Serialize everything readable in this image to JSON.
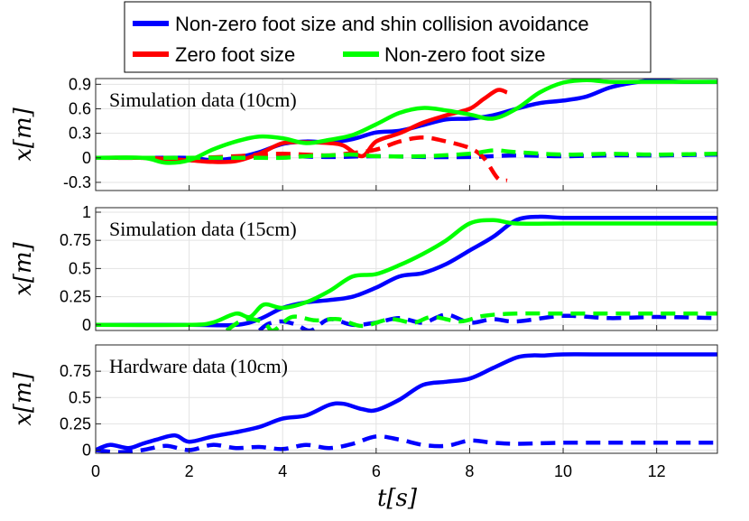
{
  "legend": {
    "entries": [
      {
        "label": "Non-zero foot size and shin collision avoidance",
        "color": "#0000ff"
      },
      {
        "label": "Zero foot size",
        "color": "#ff0000"
      },
      {
        "label": "Non-zero foot size",
        "color": "#00ff00"
      }
    ]
  },
  "chart_data": [
    {
      "type": "line",
      "annotation": "Simulation data (10cm)",
      "ylabel": "x[m]",
      "xlabel": "",
      "xlim": [
        0,
        13.3
      ],
      "ylim": [
        -0.4,
        0.97
      ],
      "yticks": [
        -0.3,
        0,
        0.3,
        0.6,
        0.9
      ],
      "ytick_labels": [
        "-0.3",
        "0",
        "0.3",
        "0.6",
        "0.9"
      ],
      "grid": true,
      "series": [
        {
          "name": "Non-zero foot size and shin collision avoidance",
          "color": "#0000ff",
          "dashed": false,
          "x": [
            0,
            1,
            2,
            2.5,
            3,
            3.5,
            4,
            4.5,
            5,
            5.5,
            6,
            6.5,
            7,
            7.5,
            8,
            8.5,
            9,
            9.5,
            10,
            10.5,
            11,
            11.5,
            12,
            12.5,
            13.3
          ],
          "y": [
            0,
            0,
            0,
            -0.03,
            0,
            0.07,
            0.17,
            0.2,
            0.19,
            0.23,
            0.31,
            0.33,
            0.4,
            0.47,
            0.48,
            0.52,
            0.6,
            0.67,
            0.7,
            0.75,
            0.86,
            0.92,
            0.95,
            0.93,
            0.93
          ]
        },
        {
          "name": "Non-zero foot size and shin collision avoidance",
          "color": "#0000ff",
          "dashed": true,
          "x": [
            0,
            2,
            3,
            4,
            5,
            6,
            7,
            8,
            9,
            10,
            11,
            12,
            13.3
          ],
          "y": [
            0,
            0,
            0,
            0.02,
            0.01,
            0.02,
            0.01,
            0.01,
            0.03,
            0.02,
            0.03,
            0.03,
            0.04
          ]
        },
        {
          "name": "Zero foot size",
          "color": "#ff0000",
          "dashed": false,
          "x": [
            0,
            1,
            2,
            2.5,
            3,
            3.5,
            4,
            4.5,
            5,
            5.3,
            5.7,
            6,
            6.5,
            7,
            7.5,
            8,
            8.3,
            8.6,
            8.8
          ],
          "y": [
            0,
            0,
            -0.03,
            -0.05,
            -0.04,
            0.05,
            0.18,
            0.19,
            0.18,
            0.15,
            0.02,
            0.2,
            0.3,
            0.43,
            0.52,
            0.6,
            0.72,
            0.83,
            0.8
          ]
        },
        {
          "name": "Zero foot size",
          "color": "#ff0000",
          "dashed": true,
          "x": [
            0,
            2,
            3,
            3.5,
            4,
            4.5,
            5,
            5.5,
            6,
            6.5,
            7,
            7.5,
            8,
            8.3,
            8.6,
            8.8
          ],
          "y": [
            0,
            0,
            0.02,
            0.04,
            0.05,
            0.04,
            0.03,
            0.06,
            0.1,
            0.2,
            0.25,
            0.2,
            0.12,
            0.0,
            -0.25,
            -0.28
          ]
        },
        {
          "name": "Non-zero foot size",
          "color": "#00ff00",
          "dashed": false,
          "x": [
            0,
            1,
            1.5,
            2,
            2.5,
            3,
            3.5,
            4,
            4.5,
            5,
            5.5,
            6,
            6.5,
            7,
            7.5,
            8,
            8.5,
            9,
            9.5,
            10,
            10.5,
            11,
            12,
            13.3
          ],
          "y": [
            0,
            0,
            -0.06,
            -0.03,
            0.1,
            0.2,
            0.26,
            0.24,
            0.18,
            0.22,
            0.28,
            0.41,
            0.55,
            0.61,
            0.58,
            0.53,
            0.48,
            0.6,
            0.8,
            0.92,
            0.95,
            0.93,
            0.93,
            0.93
          ]
        },
        {
          "name": "Non-zero foot size",
          "color": "#00ff00",
          "dashed": true,
          "x": [
            0,
            2,
            3,
            3.5,
            4,
            4.5,
            5,
            5.5,
            6,
            7,
            8,
            8.5,
            9,
            10,
            11,
            12,
            13.3
          ],
          "y": [
            0,
            0,
            0,
            0,
            0,
            0.02,
            0.03,
            0.04,
            0.02,
            0.02,
            0.05,
            0.09,
            0.07,
            0.04,
            0.05,
            0.04,
            0.05
          ]
        }
      ]
    },
    {
      "type": "line",
      "annotation": "Simulation data (15cm)",
      "ylabel": "x[m]",
      "xlabel": "",
      "xlim": [
        0,
        13.3
      ],
      "ylim": [
        -0.05,
        1.04
      ],
      "yticks": [
        0,
        0.25,
        0.5,
        0.75,
        1
      ],
      "ytick_labels": [
        "0",
        "0.25",
        "0.5",
        "0.75",
        "1"
      ],
      "grid": true,
      "series": [
        {
          "name": "Non-zero foot size and shin collision avoidance",
          "color": "#0000ff",
          "dashed": false,
          "x": [
            0,
            2,
            3,
            3.5,
            4,
            4.5,
            5,
            5.5,
            6,
            6.5,
            7,
            7.5,
            8,
            8.5,
            9,
            9.5,
            10,
            11,
            12,
            13.3
          ],
          "y": [
            0,
            0,
            0,
            0.05,
            0.15,
            0.2,
            0.22,
            0.25,
            0.33,
            0.43,
            0.46,
            0.54,
            0.66,
            0.78,
            0.93,
            0.96,
            0.95,
            0.95,
            0.95,
            0.95
          ]
        },
        {
          "name": "Non-zero foot size and shin collision avoidance",
          "color": "#0000ff",
          "dashed": true,
          "x": [
            3.5,
            3.7,
            4,
            4.3,
            4.6,
            5,
            5.5,
            6,
            6.5,
            7,
            7.5,
            8,
            8.5,
            9,
            10,
            11,
            12,
            13.3
          ],
          "y": [
            -0.05,
            0.01,
            0.03,
            0,
            -0.05,
            0.05,
            0.0,
            0.02,
            0.06,
            0.02,
            0.09,
            0.02,
            0.05,
            0.03,
            0.08,
            0.06,
            0.07,
            0.06
          ]
        },
        {
          "name": "Non-zero foot size",
          "color": "#00ff00",
          "dashed": false,
          "x": [
            0,
            2,
            2.5,
            3,
            3.3,
            3.6,
            4,
            4.5,
            5,
            5.5,
            6,
            6.5,
            7,
            7.5,
            8,
            8.5,
            9,
            10,
            11,
            12,
            13.3
          ],
          "y": [
            0,
            0,
            0.02,
            0.1,
            0.07,
            0.18,
            0.15,
            0.2,
            0.3,
            0.43,
            0.45,
            0.53,
            0.63,
            0.75,
            0.9,
            0.93,
            0.9,
            0.9,
            0.9,
            0.9,
            0.9
          ]
        },
        {
          "name": "Non-zero foot size",
          "color": "#00ff00",
          "dashed": true,
          "x": [
            2.8,
            3.2,
            3.6,
            3.8,
            4.2,
            4.7,
            5.2,
            5.7,
            6.3,
            6.8,
            7.2,
            7.8,
            8.3,
            9,
            10,
            11,
            12,
            13.3
          ],
          "y": [
            -0.05,
            0.05,
            0.02,
            -0.05,
            0.07,
            0.04,
            0.05,
            -0.01,
            0.05,
            0.02,
            0.07,
            0.03,
            0.08,
            0.1,
            0.1,
            0.1,
            0.1,
            0.1
          ]
        }
      ]
    },
    {
      "type": "line",
      "annotation": "Hardware data (10cm)",
      "ylabel": "x[m]",
      "xlabel": "t[s]",
      "xlim": [
        0,
        13.3
      ],
      "ylim": [
        -0.03,
        1.0
      ],
      "yticks": [
        0,
        0.25,
        0.5,
        0.75
      ],
      "ytick_labels": [
        "0",
        "0.25",
        "0.5",
        "0.75"
      ],
      "xticks": [
        0,
        2,
        4,
        6,
        8,
        10,
        12
      ],
      "xtick_labels": [
        "0",
        "2",
        "4",
        "6",
        "8",
        "10",
        "12"
      ],
      "grid": true,
      "series": [
        {
          "name": "Non-zero foot size and shin collision avoidance",
          "color": "#0000ff",
          "dashed": false,
          "x": [
            0,
            0.3,
            0.7,
            1,
            1.3,
            1.7,
            2,
            2.5,
            3,
            3.5,
            4,
            4.5,
            5,
            5.3,
            5.7,
            6,
            6.5,
            7,
            7.5,
            8,
            8.5,
            9,
            9.3,
            9.6,
            10,
            11,
            12,
            13.3
          ],
          "y": [
            0,
            0.05,
            0.02,
            0.06,
            0.1,
            0.14,
            0.08,
            0.13,
            0.17,
            0.22,
            0.3,
            0.33,
            0.43,
            0.44,
            0.39,
            0.38,
            0.48,
            0.62,
            0.65,
            0.68,
            0.78,
            0.88,
            0.9,
            0.9,
            0.91,
            0.91,
            0.91,
            0.91
          ]
        },
        {
          "name": "Non-zero foot size and shin collision avoidance",
          "color": "#0000ff",
          "dashed": true,
          "x": [
            0,
            0.5,
            1,
            1.5,
            2,
            2.5,
            3,
            3.5,
            4,
            4.5,
            5,
            5.5,
            6,
            6.5,
            7,
            7.5,
            8,
            8.5,
            9,
            10,
            11,
            12,
            13.3
          ],
          "y": [
            0,
            -0.02,
            0,
            0.04,
            0.0,
            0.05,
            0.02,
            0.03,
            0.01,
            0.05,
            0.02,
            0.06,
            0.13,
            0.1,
            0.05,
            0.04,
            0.09,
            0.07,
            0.06,
            0.07,
            0.07,
            0.07,
            0.07
          ]
        }
      ]
    }
  ]
}
